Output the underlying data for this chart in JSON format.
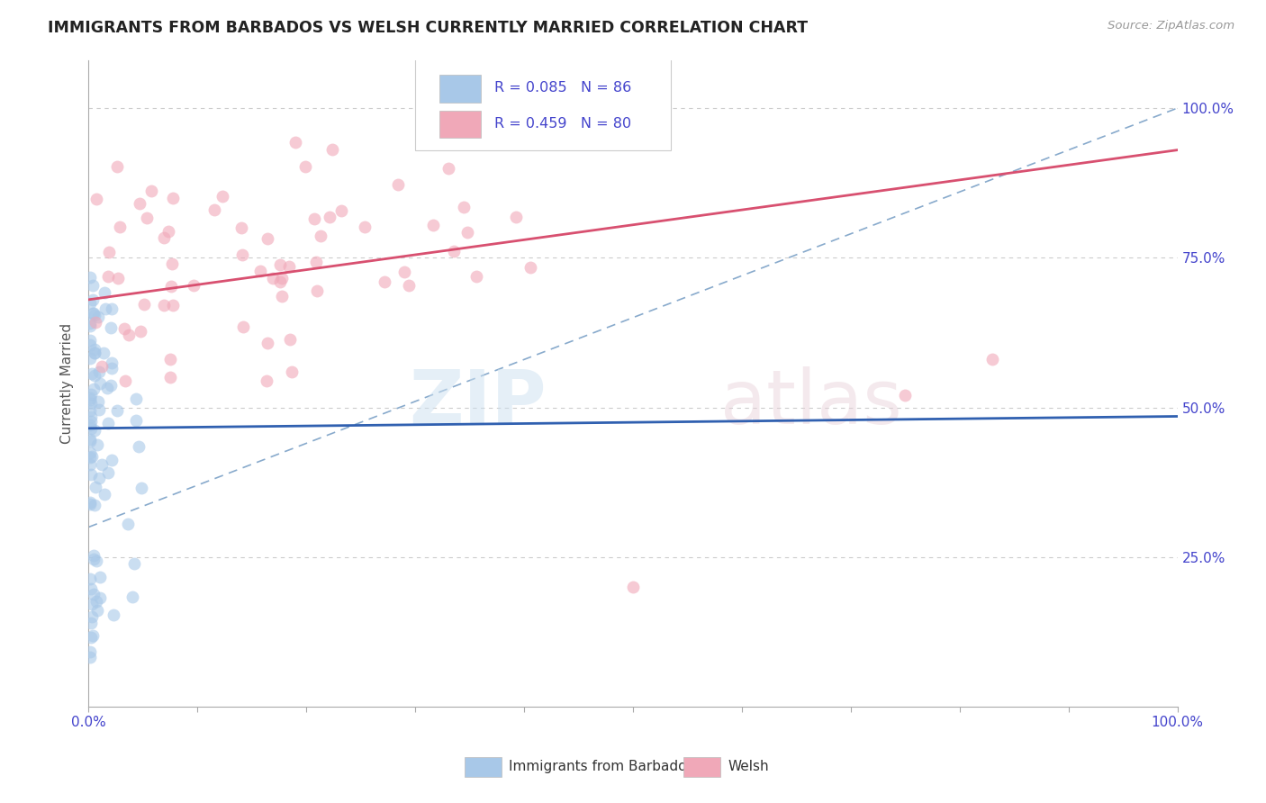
{
  "title": "IMMIGRANTS FROM BARBADOS VS WELSH CURRENTLY MARRIED CORRELATION CHART",
  "source": "Source: ZipAtlas.com",
  "ylabel": "Currently Married",
  "legend_label_blue": "Immigrants from Barbados",
  "legend_label_pink": "Welsh",
  "R_blue": 0.085,
  "N_blue": 86,
  "R_pink": 0.459,
  "N_pink": 80,
  "blue_color": "#a8c8e8",
  "pink_color": "#f0a8b8",
  "trend_blue": "#3060b0",
  "trend_pink": "#d85070",
  "trend_dashed_color": "#88aacc",
  "grid_color": "#cccccc",
  "bg_color": "#ffffff",
  "title_color": "#222222",
  "axis_label_color": "#555555",
  "tick_color": "#4444cc",
  "scatter_alpha": 0.6,
  "scatter_size": 100
}
